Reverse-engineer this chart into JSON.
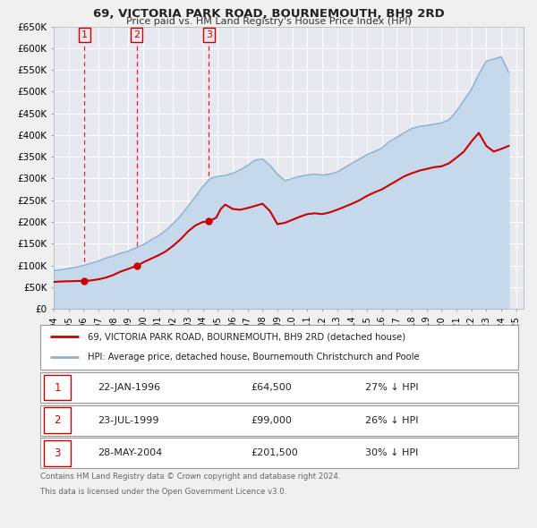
{
  "title": "69, VICTORIA PARK ROAD, BOURNEMOUTH, BH9 2RD",
  "subtitle": "Price paid vs. HM Land Registry's House Price Index (HPI)",
  "legend_line1": "69, VICTORIA PARK ROAD, BOURNEMOUTH, BH9 2RD (detached house)",
  "legend_line2": "HPI: Average price, detached house, Bournemouth Christchurch and Poole",
  "footnote1": "Contains HM Land Registry data © Crown copyright and database right 2024.",
  "footnote2": "This data is licensed under the Open Government Licence v3.0.",
  "transactions": [
    {
      "num": 1,
      "date": "22-JAN-1996",
      "price": 64500,
      "price_str": "£64,500",
      "hpi_pct": "27% ↓ HPI",
      "x_year": 1996.055
    },
    {
      "num": 2,
      "date": "23-JUL-1999",
      "price": 99000,
      "price_str": "£99,000",
      "hpi_pct": "26% ↓ HPI",
      "x_year": 1999.558
    },
    {
      "num": 3,
      "date": "28-MAY-2004",
      "price": 201500,
      "price_str": "£201,500",
      "hpi_pct": "30% ↓ HPI",
      "x_year": 2004.408
    }
  ],
  "price_color": "#cc0000",
  "hpi_fill_color": "#c5d8ec",
  "hpi_line_color": "#8ab0cc",
  "marker_color": "#cc0000",
  "bg_color": "#f0f0f0",
  "plot_bg_color": "#e8e8f0",
  "grid_color": "#ffffff",
  "ylim": [
    0,
    650000
  ],
  "xlim_start": 1994.0,
  "xlim_end": 2025.5,
  "yticks": [
    0,
    50000,
    100000,
    150000,
    200000,
    250000,
    300000,
    350000,
    400000,
    450000,
    500000,
    550000,
    600000,
    650000
  ],
  "ytick_labels": [
    "£0",
    "£50K",
    "£100K",
    "£150K",
    "£200K",
    "£250K",
    "£300K",
    "£350K",
    "£400K",
    "£450K",
    "£500K",
    "£550K",
    "£600K",
    "£650K"
  ],
  "hpi_years": [
    1994.0,
    1994.5,
    1995.0,
    1995.5,
    1996.0,
    1996.5,
    1997.0,
    1997.5,
    1998.0,
    1998.5,
    1999.0,
    1999.5,
    2000.0,
    2000.5,
    2001.0,
    2001.5,
    2002.0,
    2002.5,
    2003.0,
    2003.5,
    2004.0,
    2004.5,
    2005.0,
    2005.5,
    2006.0,
    2006.5,
    2007.0,
    2007.5,
    2008.0,
    2008.5,
    2009.0,
    2009.5,
    2010.0,
    2010.5,
    2011.0,
    2011.5,
    2012.0,
    2012.5,
    2013.0,
    2013.5,
    2014.0,
    2014.5,
    2015.0,
    2015.5,
    2016.0,
    2016.5,
    2017.0,
    2017.5,
    2018.0,
    2018.5,
    2019.0,
    2019.5,
    2020.0,
    2020.5,
    2021.0,
    2021.5,
    2022.0,
    2022.5,
    2023.0,
    2023.5,
    2024.0,
    2024.5
  ],
  "hpi_values": [
    88000,
    90000,
    93000,
    96000,
    100000,
    105000,
    110000,
    117000,
    122000,
    128000,
    133000,
    140000,
    148000,
    158000,
    168000,
    180000,
    196000,
    214000,
    236000,
    258000,
    282000,
    300000,
    305000,
    307000,
    312000,
    320000,
    330000,
    342000,
    345000,
    330000,
    310000,
    295000,
    300000,
    305000,
    308000,
    310000,
    308000,
    310000,
    315000,
    325000,
    335000,
    345000,
    355000,
    362000,
    370000,
    385000,
    395000,
    405000,
    415000,
    420000,
    422000,
    425000,
    428000,
    435000,
    455000,
    480000,
    505000,
    540000,
    570000,
    575000,
    580000,
    545000
  ],
  "price_years": [
    1994.0,
    1994.5,
    1995.0,
    1995.5,
    1996.055,
    1996.5,
    1997.0,
    1997.5,
    1998.0,
    1998.5,
    1999.0,
    1999.558,
    2000.0,
    2000.5,
    2001.0,
    2001.5,
    2002.0,
    2002.5,
    2003.0,
    2003.5,
    2004.0,
    2004.408,
    2004.9,
    2005.2,
    2005.5,
    2006.0,
    2006.5,
    2007.0,
    2007.5,
    2008.0,
    2008.5,
    2009.0,
    2009.5,
    2010.0,
    2010.5,
    2011.0,
    2011.5,
    2012.0,
    2012.5,
    2013.0,
    2013.5,
    2014.0,
    2014.5,
    2015.0,
    2015.5,
    2016.0,
    2016.5,
    2017.0,
    2017.5,
    2018.0,
    2018.5,
    2019.0,
    2019.5,
    2020.0,
    2020.5,
    2021.0,
    2021.5,
    2022.0,
    2022.5,
    2023.0,
    2023.5,
    2024.0,
    2024.5
  ],
  "price_values": [
    62000,
    63000,
    63500,
    64000,
    64500,
    65500,
    68000,
    72000,
    78000,
    86000,
    92000,
    99000,
    107000,
    115000,
    123000,
    132000,
    145000,
    160000,
    178000,
    192000,
    200000,
    201500,
    210000,
    230000,
    240000,
    230000,
    228000,
    232000,
    237000,
    242000,
    225000,
    195000,
    198000,
    205000,
    212000,
    218000,
    220000,
    218000,
    222000,
    228000,
    235000,
    242000,
    250000,
    260000,
    268000,
    275000,
    285000,
    295000,
    305000,
    312000,
    318000,
    322000,
    326000,
    328000,
    335000,
    348000,
    362000,
    385000,
    405000,
    375000,
    362000,
    368000,
    375000
  ]
}
